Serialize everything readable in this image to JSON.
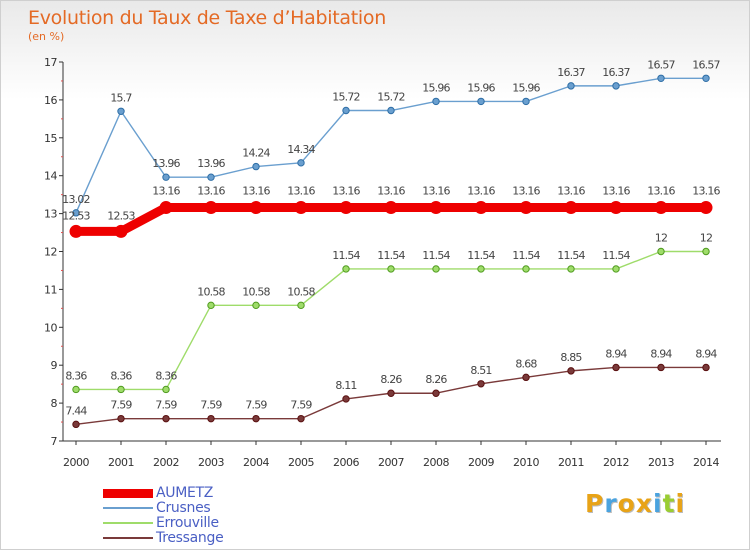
{
  "header": {
    "title": "Evolution du Taux de Taxe d’Habitation",
    "subtitle": "(en %)"
  },
  "brand": {
    "text": "Proxiti",
    "colors": [
      "#e8a317",
      "#4aa3df",
      "#e8a317",
      "#e8a317",
      "#4aa3df",
      "#9acd32",
      "#e8a317"
    ]
  },
  "chart_data": {
    "type": "line",
    "title": "Evolution du Taux de Taxe d’Habitation",
    "ylabel": "(en %)",
    "xlabel": "",
    "x": [
      "2000",
      "2001",
      "2002",
      "2003",
      "2004",
      "2005",
      "2006",
      "2007",
      "2008",
      "2009",
      "2010",
      "2011",
      "2012",
      "2013",
      "2014"
    ],
    "ylim": [
      7,
      17
    ],
    "yticks": [
      "7",
      "8",
      "9",
      "10",
      "11",
      "12",
      "13",
      "14",
      "15",
      "16",
      "17"
    ],
    "grid": false,
    "legend": "bottom-left",
    "series": [
      {
        "name": "AUMETZ",
        "color": "#ee0000",
        "width": 9,
        "values": [
          12.53,
          12.53,
          13.16,
          13.16,
          13.16,
          13.16,
          13.16,
          13.16,
          13.16,
          13.16,
          13.16,
          13.16,
          13.16,
          13.16,
          13.16
        ],
        "labels": [
          "12.53",
          "12.53",
          "13.16",
          "13.16",
          "13.16",
          "13.16",
          "13.16",
          "13.16",
          "13.16",
          "13.16",
          "13.16",
          "13.16",
          "13.16",
          "13.16",
          "13.16"
        ]
      },
      {
        "name": "Crusnes",
        "color": "#6a9fcf",
        "width": 1.4,
        "values": [
          13.02,
          15.7,
          13.96,
          13.96,
          14.24,
          14.34,
          15.72,
          15.72,
          15.96,
          15.96,
          15.96,
          16.37,
          16.37,
          16.57,
          16.57
        ],
        "labels": [
          "13.02",
          "15.7",
          "13.96",
          "13.96",
          "14.24",
          "14.34",
          "15.72",
          "15.72",
          "15.96",
          "15.96",
          "15.96",
          "16.37",
          "16.37",
          "16.57",
          "16.57"
        ]
      },
      {
        "name": "Errouville",
        "color": "#9fdc6a",
        "width": 1.4,
        "values": [
          8.36,
          8.36,
          8.36,
          10.58,
          10.58,
          10.58,
          11.54,
          11.54,
          11.54,
          11.54,
          11.54,
          11.54,
          11.54,
          12,
          12
        ],
        "labels": [
          "8.36",
          "8.36",
          "8.36",
          "10.58",
          "10.58",
          "10.58",
          "11.54",
          "11.54",
          "11.54",
          "11.54",
          "11.54",
          "11.54",
          "11.54",
          "12",
          "12"
        ]
      },
      {
        "name": "Tressange",
        "color": "#7a3a3a",
        "width": 1.4,
        "values": [
          7.44,
          7.59,
          7.59,
          7.59,
          7.59,
          7.59,
          8.11,
          8.26,
          8.26,
          8.51,
          8.68,
          8.85,
          8.94,
          8.94,
          8.94
        ],
        "labels": [
          "7.44",
          "7.59",
          "7.59",
          "7.59",
          "7.59",
          "7.59",
          "8.11",
          "8.26",
          "8.26",
          "8.51",
          "8.68",
          "8.85",
          "8.94",
          "8.94",
          "8.94"
        ]
      }
    ]
  }
}
